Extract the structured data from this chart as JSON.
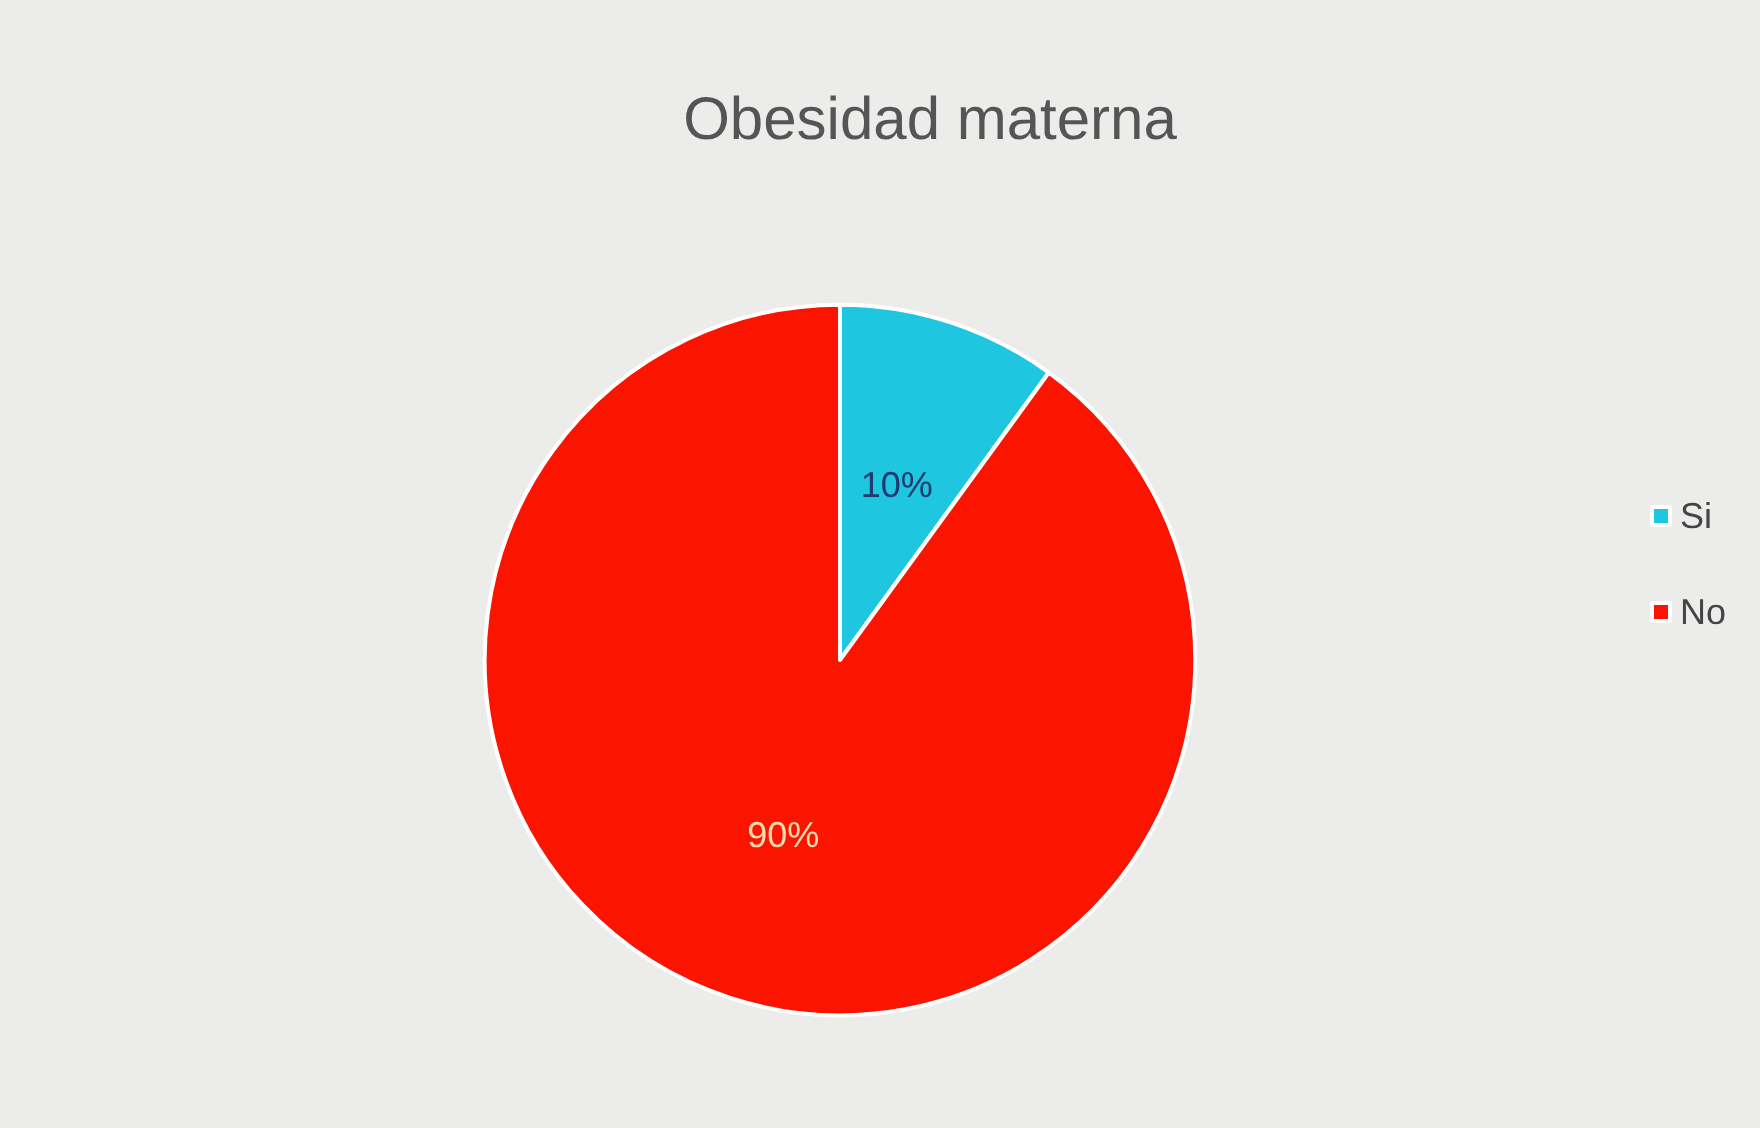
{
  "chart_data": {
    "type": "pie",
    "title": "Obesidad materna",
    "categories": [
      "Si",
      "No"
    ],
    "values": [
      10,
      90
    ],
    "colors": [
      "#1ec6df",
      "#fb1500"
    ],
    "value_labels": [
      "10%",
      "90%"
    ],
    "legend": "right"
  }
}
